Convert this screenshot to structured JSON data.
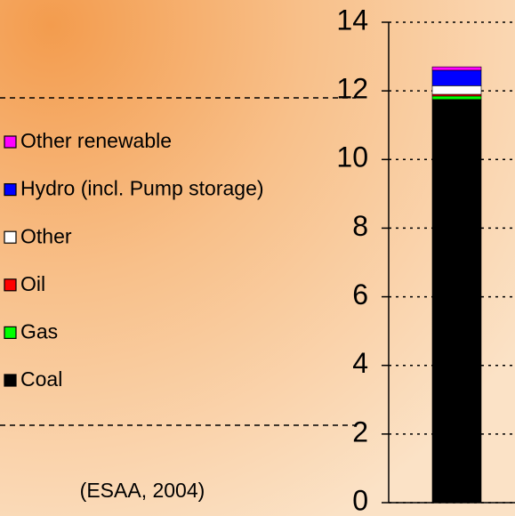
{
  "chart_data": {
    "type": "stacked_bar",
    "categories": [
      null
    ],
    "series": [
      {
        "name": "Coal",
        "color": "#000000",
        "values": [
          11.75
        ]
      },
      {
        "name": "Gas",
        "color": "#00ff00",
        "values": [
          0.1
        ]
      },
      {
        "name": "Oil",
        "color": "#ff0000",
        "values": [
          0.05
        ]
      },
      {
        "name": "Other",
        "color": "#ffffff",
        "values": [
          0.25
        ]
      },
      {
        "name": "Hydro (incl. Pump storage)",
        "color": "#0000ff",
        "values": [
          0.45
        ]
      },
      {
        "name": "Other renewable",
        "color": "#ff00ff",
        "values": [
          0.1
        ]
      }
    ],
    "ylim": [
      0,
      14
    ],
    "yticks": [
      0,
      2,
      4,
      6,
      8,
      10,
      12,
      14
    ],
    "grid": true,
    "legend": "left",
    "annotation": "(ESAA, 2004)"
  }
}
